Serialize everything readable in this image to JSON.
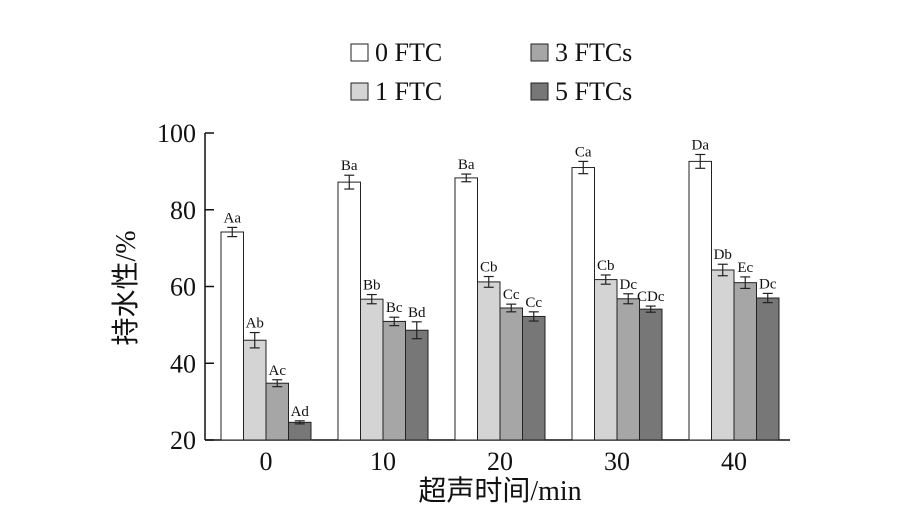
{
  "chart_data": {
    "type": "bar",
    "xlabel": "超声时间/min",
    "ylabel": "持水性/%",
    "ylim": [
      20,
      100
    ],
    "yticks": [
      20,
      40,
      60,
      80,
      100
    ],
    "categories": [
      "0",
      "10",
      "20",
      "30",
      "40"
    ],
    "grid": false,
    "legend_position": "top",
    "series": [
      {
        "name": "0 FTC",
        "color": "#ffffff",
        "values": [
          74.2,
          87.2,
          88.3,
          91.0,
          92.6
        ],
        "errors": [
          1.2,
          1.8,
          1.0,
          1.6,
          1.8
        ],
        "labels": [
          "Aa",
          "Ba",
          "Ba",
          "Ca",
          "Da"
        ]
      },
      {
        "name": "1 FTC",
        "color": "#d4d4d4",
        "values": [
          46.0,
          56.7,
          61.2,
          61.8,
          64.3
        ],
        "errors": [
          2.0,
          1.2,
          1.4,
          1.2,
          1.5
        ],
        "labels": [
          "Ab",
          "Bb",
          "Cb",
          "Cb",
          "Db"
        ]
      },
      {
        "name": "3 FTCs",
        "color": "#a6a6a6",
        "values": [
          34.8,
          50.9,
          54.4,
          56.8,
          61.0
        ],
        "errors": [
          0.9,
          1.1,
          1.0,
          1.3,
          1.5
        ],
        "labels": [
          "Ac",
          "Bc",
          "Cc",
          "Dc",
          "Ec"
        ]
      },
      {
        "name": "5 FTCs",
        "color": "#777777",
        "values": [
          24.6,
          48.6,
          52.2,
          54.1,
          57.0
        ],
        "errors": [
          0.4,
          2.2,
          1.2,
          0.8,
          1.2
        ],
        "labels": [
          "Ad",
          "Bd",
          "Cc",
          "CDc",
          "Dc"
        ]
      }
    ]
  }
}
